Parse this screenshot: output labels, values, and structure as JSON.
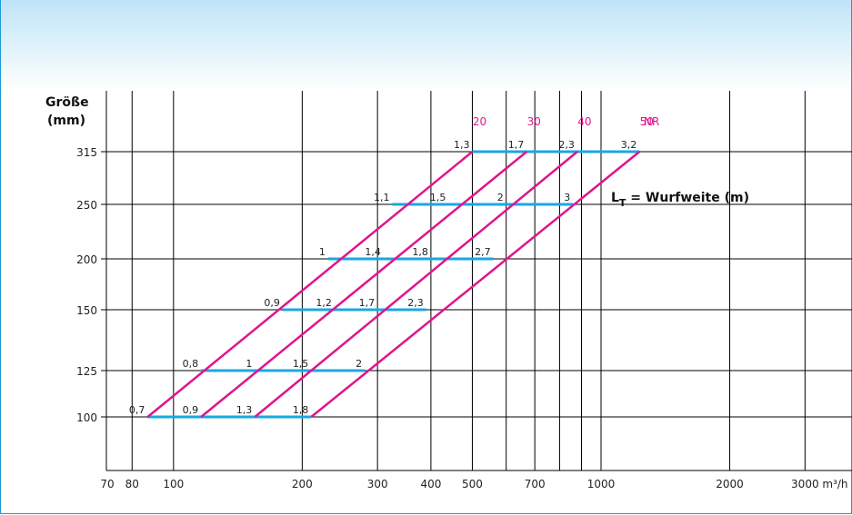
{
  "colors": {
    "frame": "#1e9ad6",
    "size_lines": "#1aa8e0",
    "nr_lines": "#e0158c",
    "grid": "#000000",
    "header_gradient_top": "#bfe4f7"
  },
  "chart_data": {
    "type": "line",
    "x_scale": "log",
    "xlim": [
      70,
      3000
    ],
    "x_ticks": [
      70,
      80,
      100,
      200,
      300,
      400,
      500,
      700,
      1000,
      2000,
      3000
    ],
    "x_tick_labels": [
      "70",
      "80",
      "100",
      "200",
      "300",
      "400",
      "500",
      "700",
      "1000",
      "2000",
      "3000"
    ],
    "x_unit": "m³/h",
    "x_grid_extra": [
      600,
      800,
      900
    ],
    "ylabel_line1": "Größe",
    "ylabel_line2": "(mm)",
    "y_categories": [
      100,
      125,
      150,
      200,
      250,
      315
    ],
    "y_tick_labels": [
      "100",
      "125",
      "150",
      "200",
      "250",
      "315"
    ],
    "legend_LT": {
      "main": "L",
      "sub": "T",
      "rest": " = Wurfweite (m)"
    },
    "nr_label_suffix": "NR",
    "nr_series": [
      {
        "name": "20",
        "points": [
          [
            87,
            100
          ],
          [
            500,
            315
          ]
        ]
      },
      {
        "name": "30",
        "points": [
          [
            116,
            100
          ],
          [
            670,
            315
          ]
        ]
      },
      {
        "name": "40",
        "points": [
          [
            155,
            100
          ],
          [
            880,
            315
          ]
        ]
      },
      {
        "name": "50",
        "points": [
          [
            210,
            100
          ],
          [
            1230,
            315
          ]
        ]
      }
    ],
    "size_rows": [
      {
        "size": 100,
        "x_range": [
          87,
          210
        ],
        "throws": [
          [
            "0,7",
            87
          ],
          [
            "0,9",
            116
          ],
          [
            "1,3",
            155
          ],
          [
            "1,8",
            210
          ]
        ]
      },
      {
        "size": 125,
        "x_range": [
          116,
          280
        ],
        "throws": [
          [
            "0,8",
            116
          ],
          [
            "1",
            155
          ],
          [
            "1,5",
            210
          ],
          [
            "2",
            280
          ]
        ]
      },
      {
        "size": 150,
        "x_range": [
          180,
          390
        ],
        "throws": [
          [
            "0,9",
            180
          ],
          [
            "1,2",
            238
          ],
          [
            "1,7",
            300
          ],
          [
            "2,3",
            390
          ]
        ]
      },
      {
        "size": 200,
        "x_range": [
          230,
          560
        ],
        "throws": [
          [
            "1",
            230
          ],
          [
            "1,4",
            310
          ],
          [
            "1,8",
            400
          ],
          [
            "2,7",
            560
          ]
        ]
      },
      {
        "size": 250,
        "x_range": [
          325,
          860
        ],
        "throws": [
          [
            "1,1",
            325
          ],
          [
            "1,5",
            440
          ],
          [
            "2",
            600
          ],
          [
            "3",
            860
          ]
        ]
      },
      {
        "size": 315,
        "x_range": [
          500,
          1230
        ],
        "throws": [
          [
            "1,3",
            500
          ],
          [
            "1,7",
            670
          ],
          [
            "2,3",
            880
          ],
          [
            "3,2",
            1230
          ]
        ]
      }
    ]
  }
}
